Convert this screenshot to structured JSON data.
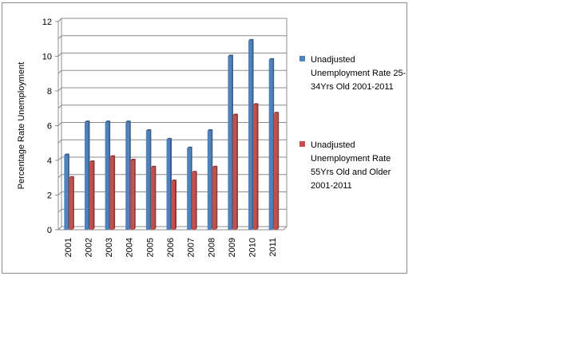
{
  "colors": {
    "series_a": "#4f81bd",
    "series_a_edge": "#385d8a",
    "series_b": "#c0504d",
    "series_b_edge": "#8c3836",
    "grid": "#8c8c8c",
    "frame": "#8c8c8c"
  },
  "chart_data": {
    "type": "bar",
    "title": "",
    "xlabel": "",
    "ylabel": "Percentage Rate Unemployment",
    "ylim": [
      0,
      12
    ],
    "yticks": [
      0,
      2,
      4,
      6,
      8,
      10,
      12
    ],
    "grid": true,
    "legend_position": "right",
    "categories": [
      "2001",
      "2002",
      "2003",
      "2004",
      "2005",
      "2006",
      "2007",
      "2008",
      "2009",
      "2010",
      "2011"
    ],
    "series": [
      {
        "name": "Unadjusted Unemployment Rate 25-34Yrs Old 2001-2011",
        "values": [
          4.3,
          6.2,
          6.2,
          6.2,
          5.7,
          5.2,
          4.7,
          5.7,
          10.0,
          10.9,
          9.8
        ]
      },
      {
        "name": "Unadjusted Unemployment Rate 55Yrs Old and Older 2001-2011",
        "values": [
          3.0,
          3.9,
          4.2,
          4.0,
          3.6,
          2.8,
          3.3,
          3.6,
          6.6,
          7.2,
          6.7
        ]
      }
    ]
  }
}
